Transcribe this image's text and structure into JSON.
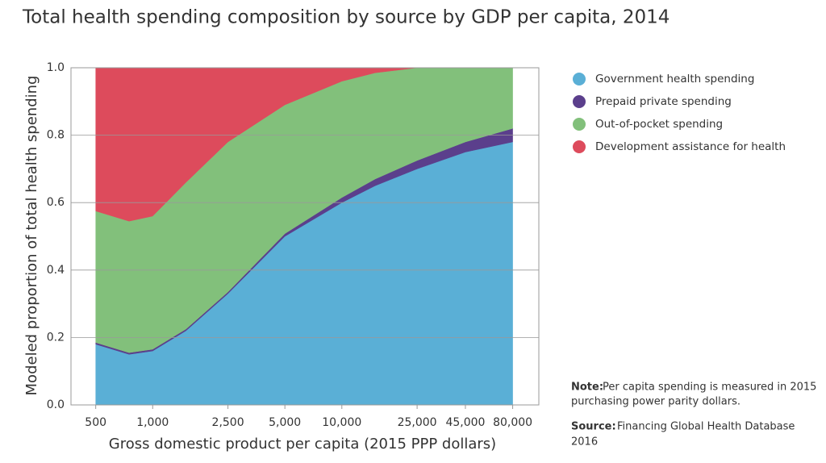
{
  "chart_data": {
    "type": "stacked-area",
    "title": "Total health spending composition by source by GDP per capita, 2014",
    "x_label": "Gross domestic product per capita (2015 PPP dollars)",
    "y_label": "Modeled proportion of total health spending",
    "x": [
      500,
      750,
      1000,
      1500,
      2500,
      5000,
      10000,
      15000,
      25000,
      45000,
      80000
    ],
    "x_scale": "log",
    "xlim": [
      370,
      110000
    ],
    "xticks": [
      500,
      {
        "value": 1000,
        "label": "1,000"
      },
      {
        "value": 2500,
        "label": "2,500"
      },
      {
        "value": 5000,
        "label": "5,000"
      },
      {
        "value": 10000,
        "label": "10,000"
      },
      {
        "value": 25000,
        "label": "25,000"
      },
      {
        "value": 45000,
        "label": "45,000"
      },
      {
        "value": 80000,
        "label": "80,000"
      }
    ],
    "ylim": [
      0,
      1
    ],
    "yticks": [
      {
        "value": 0,
        "label": "0.0"
      },
      0.2,
      0.4,
      0.6,
      0.8,
      {
        "value": 1,
        "label": "1.0"
      }
    ],
    "grid": true,
    "legend": "right",
    "series": [
      {
        "name": "Government health spending",
        "color": "#5aafd6",
        "values": [
          0.18,
          0.15,
          0.16,
          0.22,
          0.33,
          0.5,
          0.6,
          0.65,
          0.7,
          0.75,
          0.78
        ]
      },
      {
        "name": "Prepaid private spending",
        "color": "#5b3f8c",
        "values": [
          0.005,
          0.005,
          0.005,
          0.005,
          0.005,
          0.008,
          0.015,
          0.02,
          0.025,
          0.03,
          0.04
        ]
      },
      {
        "name": "Out-of-pocket spending",
        "color": "#82c07b",
        "values": [
          0.39,
          0.39,
          0.395,
          0.435,
          0.445,
          0.382,
          0.345,
          0.315,
          0.275,
          0.22,
          0.18
        ]
      },
      {
        "name": "Development assistance for health",
        "color": "#dd4b5c",
        "values": [
          0.425,
          0.455,
          0.44,
          0.34,
          0.22,
          0.11,
          0.04,
          0.015,
          0,
          0,
          0
        ]
      }
    ],
    "note_label": "Note:",
    "note_text": [
      "Per capita spending is measured in 2015",
      "purchasing power parity dollars."
    ],
    "source_label": "Source:",
    "source_text": [
      "Financing Global Health Database",
      "2016"
    ]
  }
}
